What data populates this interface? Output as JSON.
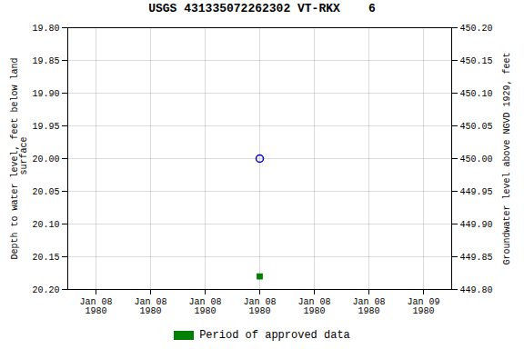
{
  "chart_data": {
    "type": "scatter",
    "title": "USGS 431335072262302 VT-RKX    6",
    "categories": [
      "Jan 08\n1980",
      "Jan 08\n1980",
      "Jan 08\n1980",
      "Jan 08\n1980",
      "Jan 08\n1980",
      "Jan 08\n1980",
      "Jan 09\n1980"
    ],
    "y_label": "Depth to water level, feet below land\n surface",
    "y2_label": "Groundwater level above NGVD 1929, feet",
    "ylim": [
      20.2,
      19.8
    ],
    "yticks": [
      {
        "value": 19.8,
        "label": "19.80"
      },
      19.85,
      {
        "value": 19.9,
        "label": "19.90"
      },
      19.95,
      {
        "value": 20,
        "label": "20.00"
      },
      20.05,
      {
        "value": 20.1,
        "label": "20.10"
      },
      20.15,
      {
        "value": 20.2,
        "label": "20.20"
      }
    ],
    "y2lim": [
      449.8,
      450.2
    ],
    "y2ticks": [
      {
        "value": 449.8,
        "label": "449.80"
      },
      449.85,
      {
        "value": 449.9,
        "label": "449.90"
      },
      449.95,
      {
        "value": 450,
        "label": "450.00"
      },
      450.05,
      {
        "value": 450.1,
        "label": "450.10"
      },
      450.15,
      {
        "value": 450.2,
        "label": "450.20"
      }
    ],
    "series": [
      {
        "color": "#0000cc",
        "marker": "circle",
        "values": [
          null,
          null,
          null,
          20.0,
          null,
          null,
          null
        ]
      },
      {
        "name": "Period of approved data",
        "color": "#008000",
        "marker": "square",
        "values": [
          null,
          null,
          null,
          20.18,
          null,
          null,
          null
        ]
      }
    ],
    "grid": true,
    "legend": "bottom"
  }
}
